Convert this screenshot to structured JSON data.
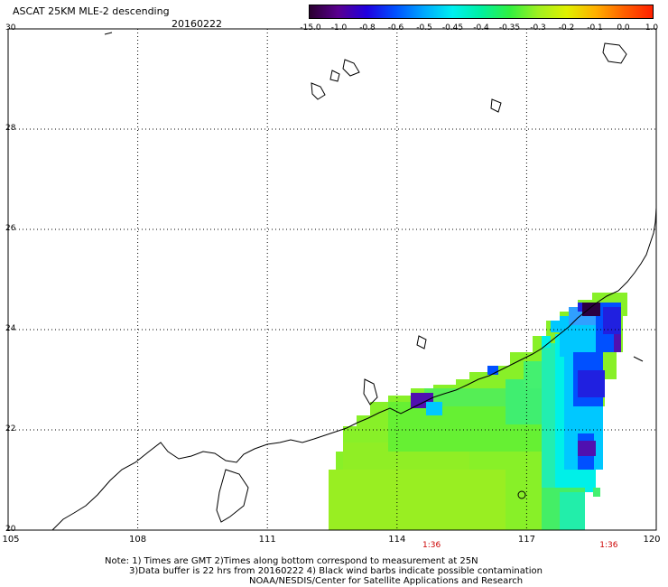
{
  "title": "ASCAT 25KM MLE-2 descending",
  "date": "20160222",
  "colorbar": {
    "labels": [
      "-15.0",
      "-1.0",
      "-0.8",
      "-0.6",
      "-0.5",
      "-0.45",
      "-0.4",
      "-0.35",
      "-0.3",
      "-0.2",
      "-0.1",
      "0.0",
      "1.0"
    ],
    "colors": [
      "#2a0030",
      "#5a0090",
      "#2000e0",
      "#0050ff",
      "#00a8ff",
      "#00f0f0",
      "#00f0a0",
      "#30f040",
      "#a0f020",
      "#e0f000",
      "#ffb000",
      "#ff6000",
      "#ff2000"
    ]
  },
  "map": {
    "lon_range": [
      105,
      120
    ],
    "lat_range": [
      20,
      30
    ],
    "lon_ticks": [
      "105",
      "108",
      "111",
      "114",
      "117",
      "120"
    ],
    "lat_ticks": [
      "30",
      "28",
      "26",
      "24",
      "22",
      "20"
    ],
    "pass_times": [
      {
        "label": "1:36",
        "lon": 114.8
      },
      {
        "label": "1:36",
        "lon": 118.9
      }
    ]
  },
  "notes": [
    "Note: 1) Times are GMT 2)Times along bottom correspond to measurement at 25N",
    "3)Data buffer is 22 hrs from 20160222 4) Black wind barbs indicate possible contamination",
    "NOAA/NESDIS/Center for Satellite Applications and Research"
  ]
}
